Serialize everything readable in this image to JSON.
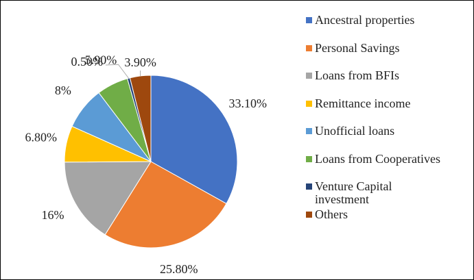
{
  "chart_data": {
    "type": "pie",
    "categories": [
      "Ancestral properties",
      "Personal Savings",
      "Loans from BFIs",
      "Remittance income",
      "Unofficial loans",
      "Loans from Cooperatives",
      "Venture Capital investment",
      "Others"
    ],
    "values": [
      33.1,
      25.8,
      16,
      6.8,
      8,
      5.9,
      0.5,
      3.9
    ],
    "value_labels": [
      "33.10%",
      "25.80%",
      "16%",
      "6.80%",
      "8%",
      "5.90%",
      "0.50%",
      "3.90%"
    ],
    "colors": [
      "#4472c4",
      "#ed7d31",
      "#a5a5a5",
      "#ffc000",
      "#5b9bd5",
      "#70ad47",
      "#264478",
      "#9e480e"
    ],
    "legend": "right"
  }
}
